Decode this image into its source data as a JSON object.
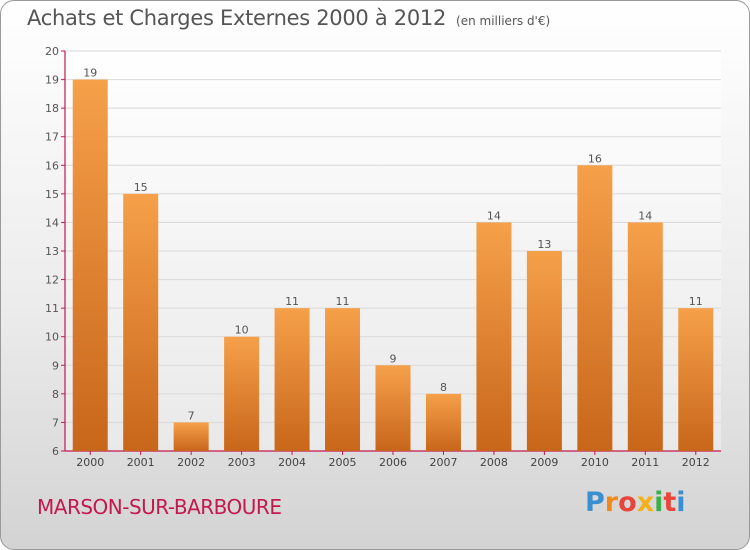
{
  "title": "Achats et Charges Externes 2000 à 2012",
  "subtitle": "(en milliers d'€)",
  "commune": "MARSON-SUR-BARBOURE",
  "brand": "Proxiti",
  "colors": {
    "bar_light": "#f6a04a",
    "bar_dark": "#c8661a",
    "axis": "#c4184e",
    "grid": "#d9d9d9",
    "commune_text": "#c4184e"
  },
  "chart_data": {
    "type": "bar",
    "categories": [
      "2000",
      "2001",
      "2002",
      "2003",
      "2004",
      "2005",
      "2006",
      "2007",
      "2008",
      "2009",
      "2010",
      "2011",
      "2012"
    ],
    "values": [
      19,
      15,
      7,
      10,
      11,
      11,
      9,
      8,
      14,
      13,
      16,
      14,
      11
    ],
    "ylim": [
      6,
      20
    ],
    "yticks": [
      6,
      7,
      8,
      9,
      10,
      11,
      12,
      13,
      14,
      15,
      16,
      17,
      18,
      19,
      20
    ],
    "grid": true,
    "title": "Achats et Charges Externes 2000 à 2012",
    "xlabel": "",
    "ylabel": ""
  }
}
